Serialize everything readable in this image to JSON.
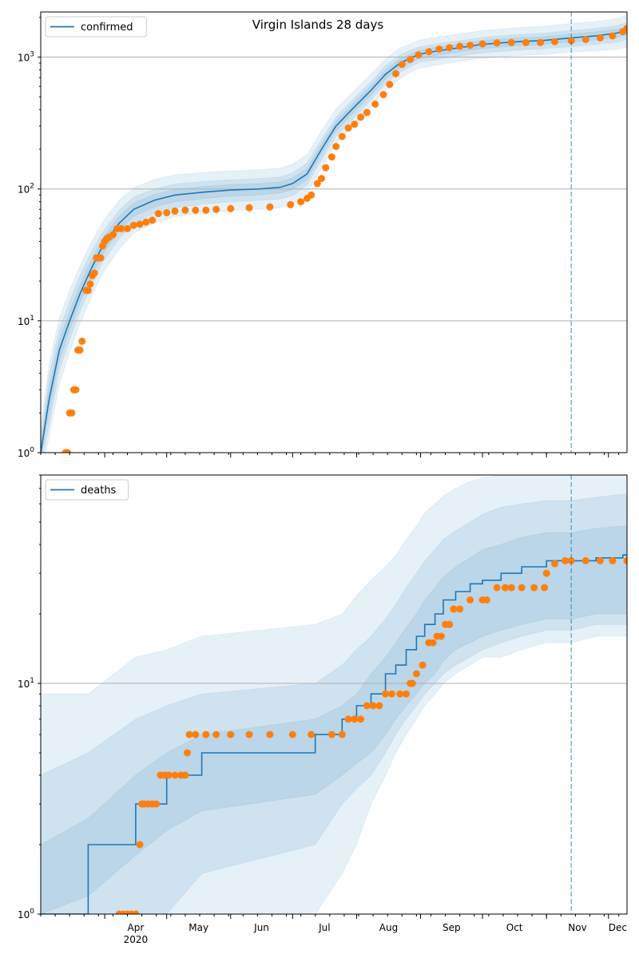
{
  "title": "Virgin Islands 28 days",
  "colors": {
    "line": "#1f77b4",
    "band": "#1f77b4",
    "points": "#ff7f0e",
    "grid": "#b0b0b0",
    "vline": "#1f77b4"
  },
  "x_axis": {
    "months": [
      "Apr",
      "May",
      "Jun",
      "Jul",
      "Aug",
      "Sep",
      "Oct",
      "Nov",
      "Dec"
    ],
    "year_label": "2020",
    "start": "2020-03-01",
    "end": "2020-12-10",
    "forecast_start": "2020-11-13"
  },
  "chart_data": [
    {
      "type": "line",
      "panel": "top",
      "legend": "confirmed",
      "legend_position": "top-left",
      "yscale": "log",
      "ylim": [
        1,
        2200
      ],
      "yticks": [
        1,
        10,
        100,
        1000
      ],
      "grid": "y-major",
      "model": {
        "x": [
          "2020-03-01",
          "2020-03-05",
          "2020-03-10",
          "2020-03-15",
          "2020-03-20",
          "2020-03-25",
          "2020-03-31",
          "2020-04-08",
          "2020-04-15",
          "2020-04-25",
          "2020-05-05",
          "2020-05-20",
          "2020-06-01",
          "2020-06-15",
          "2020-06-25",
          "2020-07-01",
          "2020-07-08",
          "2020-07-15",
          "2020-07-22",
          "2020-07-31",
          "2020-08-08",
          "2020-08-15",
          "2020-08-22",
          "2020-08-31",
          "2020-09-10",
          "2020-09-20",
          "2020-10-01",
          "2020-10-15",
          "2020-10-31",
          "2020-11-13",
          "2020-11-25",
          "2020-12-05",
          "2020-12-10"
        ],
        "y": [
          1,
          2.5,
          6,
          10,
          16,
          24,
          37,
          55,
          70,
          82,
          90,
          95,
          98,
          100,
          103,
          110,
          130,
          200,
          300,
          420,
          560,
          740,
          900,
          1050,
          1120,
          1180,
          1250,
          1300,
          1340,
          1400,
          1450,
          1520,
          1600
        ],
        "bands": [
          {
            "lo": [
              0.7,
              1.3,
              3.3,
              5.8,
              9.5,
              14.5,
              23,
              35,
              46,
              55,
              62,
              66,
              68,
              70,
              72,
              77,
              93,
              145,
              220,
              310,
              420,
              560,
              690,
              820,
              880,
              930,
              980,
              1020,
              1050,
              1090,
              1120,
              1150,
              1190
            ],
            "hi": [
              1.5,
              4.6,
              10.5,
              17,
              26,
              38,
              56,
              82,
              102,
              118,
              128,
              134,
              137,
              140,
              144,
              154,
              182,
              275,
              405,
              560,
              740,
              970,
              1170,
              1340,
              1430,
              1500,
              1590,
              1660,
              1720,
              1800,
              1860,
              1960,
              2080
            ]
          },
          {
            "lo": [
              0.8,
              1.6,
              4.2,
              7.2,
              11.8,
              17.8,
              28,
              42,
              55,
              65,
              72,
              77,
              80,
              82,
              84,
              89,
              107,
              166,
              250,
              350,
              475,
              630,
              770,
              910,
              970,
              1020,
              1080,
              1120,
              1160,
              1200,
              1250,
              1300,
              1360
            ],
            "hi": [
              1.3,
              3.8,
              8.6,
              14,
              22,
              32,
              47,
              69,
              87,
              100,
              109,
              114,
              117,
              120,
              123,
              132,
              157,
              237,
              350,
              490,
              650,
              860,
              1040,
              1190,
              1270,
              1330,
              1410,
              1470,
              1520,
              1590,
              1650,
              1730,
              1830
            ]
          },
          {
            "lo": [
              0.9,
              2,
              5,
              8.5,
              13.7,
              20.6,
              32,
              48,
              62,
              73,
              80,
              85,
              88,
              90,
              93,
              99,
              118,
              183,
              275,
              385,
              515,
              680,
              830,
              970,
              1040,
              1100,
              1160,
              1210,
              1250,
              1300,
              1350,
              1410,
              1480
            ],
            "hi": [
              1.15,
              3.1,
              7.2,
              11.8,
              18.7,
              27.8,
              42,
              62,
              78,
              91,
              99,
              105,
              108,
              110,
              113,
              121,
              143,
              218,
              325,
              455,
              605,
              800,
              970,
              1120,
              1200,
              1260,
              1340,
              1390,
              1430,
              1500,
              1560,
              1630,
              1720
            ]
          }
        ]
      },
      "observed": {
        "x": [
          "2020-03-13",
          "2020-03-14",
          "2020-03-15",
          "2020-03-16",
          "2020-03-17",
          "2020-03-18",
          "2020-03-19",
          "2020-03-20",
          "2020-03-21",
          "2020-03-23",
          "2020-03-24",
          "2020-03-25",
          "2020-03-26",
          "2020-03-27",
          "2020-03-28",
          "2020-03-29",
          "2020-03-30",
          "2020-03-31",
          "2020-04-01",
          "2020-04-02",
          "2020-04-03",
          "2020-04-05",
          "2020-04-07",
          "2020-04-09",
          "2020-04-12",
          "2020-04-15",
          "2020-04-18",
          "2020-04-21",
          "2020-04-24",
          "2020-04-27",
          "2020-05-01",
          "2020-05-05",
          "2020-05-10",
          "2020-05-15",
          "2020-05-20",
          "2020-05-25",
          "2020-06-01",
          "2020-06-10",
          "2020-06-20",
          "2020-06-30",
          "2020-07-05",
          "2020-07-08",
          "2020-07-10",
          "2020-07-13",
          "2020-07-15",
          "2020-07-17",
          "2020-07-20",
          "2020-07-22",
          "2020-07-25",
          "2020-07-28",
          "2020-07-31",
          "2020-08-03",
          "2020-08-06",
          "2020-08-10",
          "2020-08-14",
          "2020-08-17",
          "2020-08-20",
          "2020-08-23",
          "2020-08-27",
          "2020-08-31",
          "2020-09-05",
          "2020-09-10",
          "2020-09-15",
          "2020-09-20",
          "2020-09-25",
          "2020-10-01",
          "2020-10-08",
          "2020-10-15",
          "2020-10-22",
          "2020-10-29",
          "2020-11-05",
          "2020-11-13",
          "2020-11-20",
          "2020-11-27",
          "2020-12-03",
          "2020-12-08",
          "2020-12-10"
        ],
        "y": [
          1,
          1,
          2,
          2,
          3,
          3,
          6,
          6,
          7,
          17,
          17,
          19,
          22,
          23,
          30,
          30,
          30,
          37,
          40,
          42,
          43,
          45,
          50,
          50,
          50,
          53,
          54,
          56,
          58,
          65,
          66,
          68,
          69,
          69,
          69,
          70,
          71,
          72,
          73,
          76,
          80,
          85,
          90,
          110,
          120,
          145,
          175,
          210,
          250,
          290,
          310,
          350,
          380,
          440,
          520,
          620,
          750,
          880,
          960,
          1040,
          1100,
          1150,
          1180,
          1210,
          1230,
          1260,
          1280,
          1290,
          1290,
          1290,
          1310,
          1330,
          1360,
          1400,
          1450,
          1560,
          1650
        ]
      }
    },
    {
      "type": "line",
      "panel": "bottom",
      "legend": "deaths",
      "legend_position": "top-left",
      "yscale": "log",
      "ylim": [
        1,
        80
      ],
      "yticks": [
        1,
        10
      ],
      "grid": "y-major",
      "model": {
        "x": [
          "2020-03-01",
          "2020-03-24",
          "2020-04-16",
          "2020-05-01",
          "2020-05-18",
          "2020-07-12",
          "2020-07-25",
          "2020-08-01",
          "2020-08-08",
          "2020-08-15",
          "2020-08-20",
          "2020-08-25",
          "2020-08-30",
          "2020-09-03",
          "2020-09-08",
          "2020-09-12",
          "2020-09-18",
          "2020-09-25",
          "2020-10-01",
          "2020-10-10",
          "2020-10-20",
          "2020-11-01",
          "2020-11-13",
          "2020-11-25",
          "2020-12-08",
          "2020-12-10"
        ],
        "y": [
          1,
          2,
          3,
          4,
          5,
          6,
          7,
          8,
          9,
          11,
          12,
          14,
          16,
          18,
          20,
          23,
          25,
          27,
          28,
          30,
          32,
          34,
          34,
          35,
          36,
          36
        ],
        "bands": [
          {
            "lo": [
              1,
              1,
              1,
              1,
              1,
              1,
              1.5,
              2,
              3,
              4,
              5,
              6,
              7,
              8,
              9,
              10,
              11,
              12,
              13,
              13,
              14,
              15,
              15,
              16,
              16,
              16
            ],
            "hi": [
              9,
              9,
              13,
              14,
              16,
              18,
              20,
              24,
              28,
              32,
              36,
              42,
              48,
              55,
              60,
              65,
              70,
              75,
              78,
              80,
              80,
              80,
              80,
              80,
              80,
              80
            ]
          },
          {
            "lo": [
              1,
              1,
              1,
              1,
              1.5,
              2,
              3,
              3.5,
              4,
              5,
              6,
              7,
              8,
              9,
              10,
              11,
              12,
              13,
              14,
              15,
              16,
              17,
              17,
              18,
              18,
              18
            ],
            "hi": [
              4,
              5,
              7,
              8,
              9,
              10,
              12,
              14,
              16,
              19,
              22,
              26,
              30,
              34,
              38,
              42,
              46,
              50,
              54,
              58,
              60,
              62,
              62,
              64,
              66,
              66
            ]
          },
          {
            "lo": [
              1,
              1.2,
              1.8,
              2.3,
              2.8,
              3.3,
              4,
              4.5,
              5,
              6,
              7,
              8,
              9,
              10,
              11,
              12.5,
              14,
              15,
              16,
              17,
              18,
              19,
              19,
              20,
              20,
              20
            ],
            "hi": [
              2,
              2.6,
              4,
              5,
              6,
              7,
              8,
              9,
              11,
              13,
              15,
              17.5,
              20,
              23,
              26,
              29,
              32,
              35,
              38,
              40,
              43,
              45,
              45,
              47,
              48,
              48
            ]
          }
        ]
      },
      "observed": {
        "x": [
          "2020-04-08",
          "2020-04-10",
          "2020-04-12",
          "2020-04-14",
          "2020-04-16",
          "2020-04-18",
          "2020-04-19",
          "2020-04-20",
          "2020-04-22",
          "2020-04-24",
          "2020-04-26",
          "2020-04-28",
          "2020-04-30",
          "2020-05-02",
          "2020-05-05",
          "2020-05-08",
          "2020-05-10",
          "2020-05-11",
          "2020-05-12",
          "2020-05-15",
          "2020-05-20",
          "2020-05-25",
          "2020-06-01",
          "2020-06-10",
          "2020-06-20",
          "2020-07-01",
          "2020-07-10",
          "2020-07-20",
          "2020-07-25",
          "2020-07-28",
          "2020-07-31",
          "2020-08-03",
          "2020-08-06",
          "2020-08-09",
          "2020-08-12",
          "2020-08-15",
          "2020-08-18",
          "2020-08-22",
          "2020-08-25",
          "2020-08-27",
          "2020-08-28",
          "2020-08-30",
          "2020-09-02",
          "2020-09-05",
          "2020-09-07",
          "2020-09-09",
          "2020-09-11",
          "2020-09-13",
          "2020-09-15",
          "2020-09-17",
          "2020-09-20",
          "2020-09-25",
          "2020-10-01",
          "2020-10-03",
          "2020-10-08",
          "2020-10-12",
          "2020-10-15",
          "2020-10-20",
          "2020-10-26",
          "2020-10-31",
          "2020-11-01",
          "2020-11-05",
          "2020-11-10",
          "2020-11-13",
          "2020-11-20",
          "2020-11-27",
          "2020-12-03",
          "2020-12-10"
        ],
        "y": [
          1,
          1,
          1,
          1,
          1,
          2,
          3,
          3,
          3,
          3,
          3,
          4,
          4,
          4,
          4,
          4,
          4,
          5,
          6,
          6,
          6,
          6,
          6,
          6,
          6,
          6,
          6,
          6,
          6,
          7,
          7,
          7,
          8,
          8,
          8,
          9,
          9,
          9,
          9,
          10,
          10,
          11,
          12,
          15,
          15,
          16,
          16,
          18,
          18,
          21,
          21,
          23,
          23,
          23,
          26,
          26,
          26,
          26,
          26,
          26,
          30,
          33,
          34,
          34,
          34,
          34,
          34,
          34
        ]
      }
    }
  ]
}
